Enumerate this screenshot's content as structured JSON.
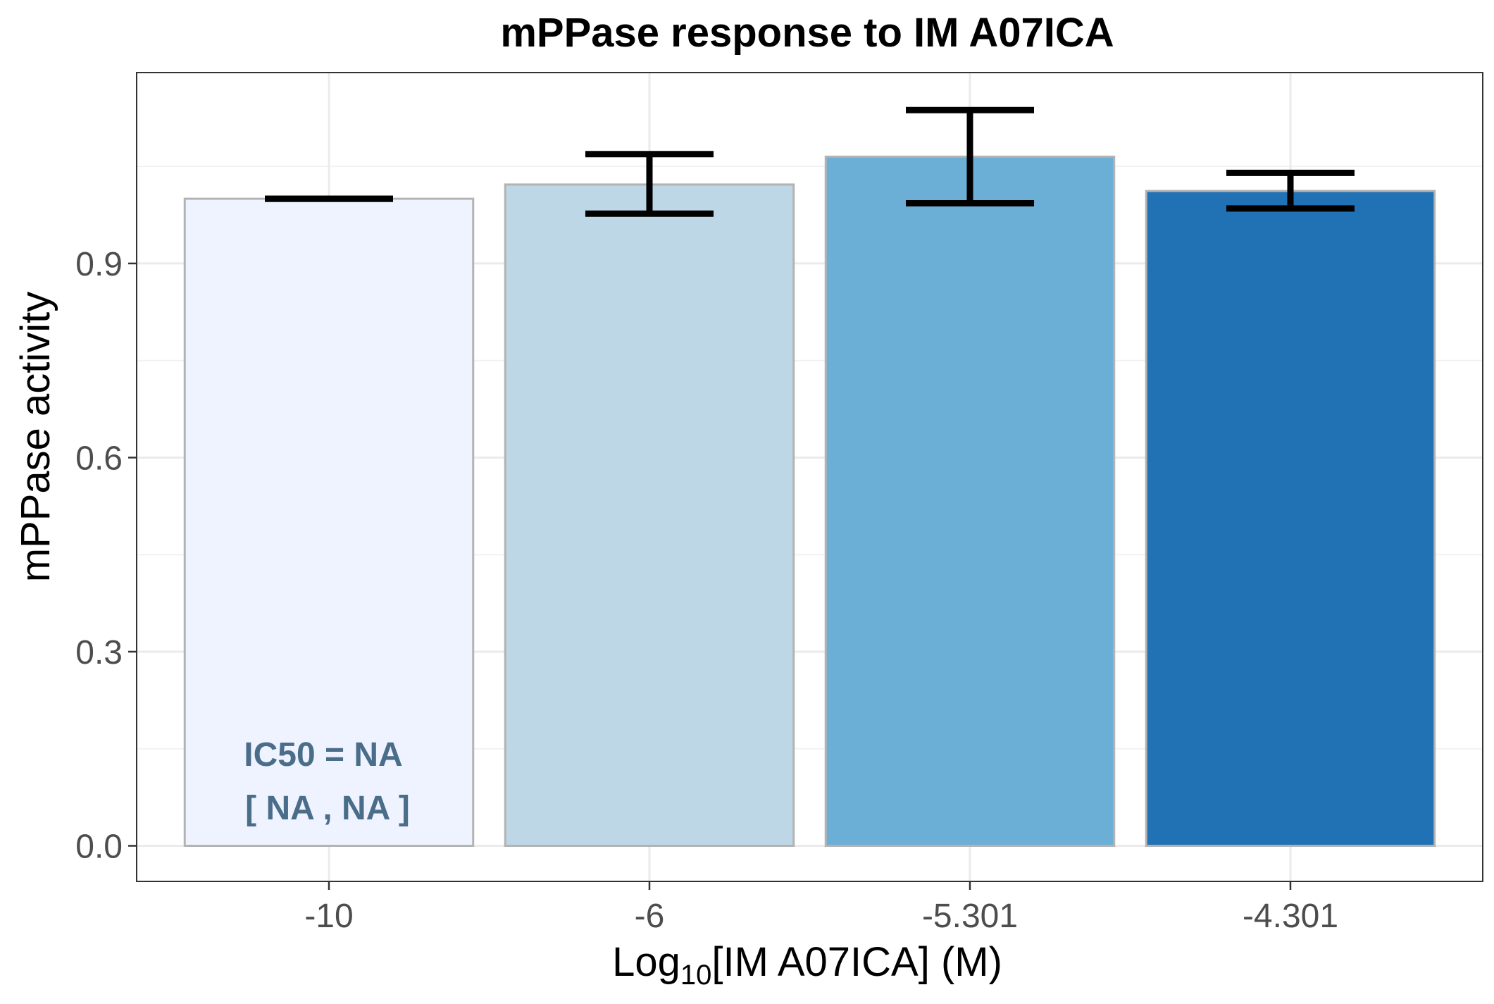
{
  "chart_data": {
    "type": "bar",
    "title": "mPPase response to IM A07ICA",
    "xlabel_prefix": "Log",
    "xlabel_subscript": "10",
    "xlabel_suffix": "[IM A07ICA] (M)",
    "ylabel": "mPPase activity",
    "categories": [
      "-10",
      "-6",
      "-5.301",
      "-4.301"
    ],
    "values": [
      1.0,
      1.022,
      1.065,
      1.012
    ],
    "error_low": [
      1.0,
      0.977,
      0.993,
      0.985
    ],
    "error_high": [
      1.0,
      1.069,
      1.137,
      1.04
    ],
    "bar_colors": [
      "#eff3ff",
      "#bdd7e7",
      "#6baed6",
      "#2171b5"
    ],
    "bar_border_color": "#b3b3b3",
    "error_bar_color": "#000000",
    "ylim": [
      -0.055,
      1.195
    ],
    "yticks": [
      0.0,
      0.3,
      0.6,
      0.9
    ],
    "ytick_labels": [
      "0.0",
      "0.3",
      "0.6",
      "0.9"
    ],
    "grid": true,
    "annotation": {
      "line1": "IC50 = NA",
      "line2": "[ NA , NA ]",
      "color": "#4a6e8a"
    }
  }
}
